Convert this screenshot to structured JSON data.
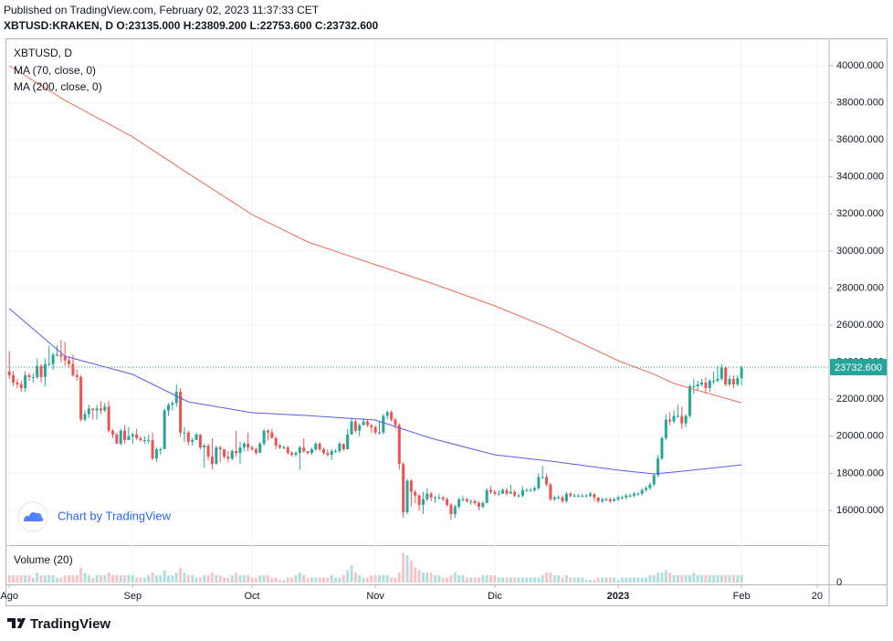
{
  "header": {
    "published": "Published on TradingView.com, February 02, 2023 11:37:33 CET",
    "ohlc_line": "XBTUSD:KRAKEN, D O:23135.000 H:23809.200 L:22753.600 C:23732.600"
  },
  "watermark": "Chart by TradingView",
  "footer_logo": "TradingView",
  "chart_data": {
    "type": "candlestick",
    "symbol": "XBTUSD, D",
    "up_color": "#26a69a",
    "down_color": "#ef5350",
    "open": [
      23500,
      23300,
      22900,
      22800,
      22600,
      23300,
      23200,
      23200,
      23800,
      23200,
      23900,
      23900,
      24400,
      24400,
      24300,
      24100,
      23900,
      23300,
      23200,
      20900,
      21200,
      21500,
      21400,
      21500,
      21400,
      21600,
      20300,
      20100,
      19600,
      20300,
      19800,
      20000,
      20100,
      19900,
      19800,
      19800,
      19800,
      18800,
      19300,
      19300,
      21400,
      21700,
      21800,
      22400,
      20200,
      20200,
      19700,
      19800,
      20100,
      19400,
      19500,
      18900,
      18500,
      19400,
      19300,
      18900,
      18800,
      19200,
      19100,
      19400,
      19600,
      19400,
      19300,
      19100,
      19600,
      20300,
      20200,
      19900,
      19500,
      19400,
      19400,
      19100,
      19000,
      19100,
      19400,
      19200,
      19100,
      19300,
      19600,
      19300,
      19100,
      19000,
      19200,
      19200,
      19600,
      19300,
      20100,
      20800,
      20300,
      20600,
      20800,
      20600,
      20500,
      20200,
      20200,
      21100,
      21300,
      20900,
      20600,
      18500,
      15900,
      17600,
      17000,
      16800,
      16300,
      16600,
      16900,
      16700,
      16700,
      16700,
      16600,
      16300,
      15800,
      16200,
      16600,
      16600,
      16500,
      16500,
      16400,
      16200,
      16400,
      17100,
      17000,
      16900,
      16900,
      17100,
      16900,
      17000,
      16800,
      16800,
      17100,
      17100,
      17100,
      17200,
      17800,
      17800,
      17400,
      16600,
      16700,
      16700,
      16500,
      16900,
      16800,
      16800,
      16800,
      16800,
      16800,
      16900,
      16700,
      16500,
      16600,
      16600,
      16500,
      16600,
      16700,
      16700,
      16800,
      16800,
      16900,
      16900,
      17100,
      17200,
      17400,
      17900,
      18800,
      19900,
      20900,
      20800,
      21100,
      21100,
      20700,
      21100,
      22700,
      22700,
      22800,
      22900,
      22600,
      23000,
      23000,
      23100,
      23700,
      22800,
      23100,
      22800,
      23135
    ],
    "high": [
      24600,
      23500,
      23100,
      23000,
      23500,
      23400,
      23400,
      24200,
      23900,
      24200,
      24900,
      24500,
      24900,
      25200,
      25100,
      24300,
      24400,
      23600,
      23300,
      21400,
      21700,
      21500,
      21700,
      21900,
      21800,
      21900,
      20400,
      20200,
      20400,
      20600,
      20500,
      20200,
      20400,
      20000,
      20000,
      20100,
      20200,
      19400,
      19400,
      21500,
      21800,
      21900,
      22800,
      22600,
      20500,
      20300,
      19900,
      20200,
      20100,
      19600,
      19600,
      19900,
      19500,
      19500,
      19300,
      19200,
      19300,
      20300,
      19700,
      19700,
      20200,
      19500,
      19400,
      19700,
      20400,
      20400,
      20400,
      20000,
      19600,
      19500,
      19500,
      19200,
      19200,
      19500,
      19900,
      19200,
      19400,
      19700,
      19700,
      19400,
      19300,
      19300,
      19300,
      19700,
      19600,
      20400,
      21000,
      20900,
      20700,
      21000,
      20900,
      20700,
      20600,
      20800,
      21200,
      21400,
      21400,
      21000,
      20700,
      18600,
      17700,
      17700,
      17100,
      16900,
      17000,
      17200,
      17000,
      16800,
      16900,
      16800,
      16700,
      16400,
      16300,
      16700,
      16800,
      16700,
      16600,
      16600,
      16500,
      16500,
      17200,
      17300,
      17100,
      17100,
      17200,
      17200,
      17400,
      17100,
      16900,
      17300,
      17200,
      17200,
      17300,
      18000,
      18400,
      18000,
      17500,
      16800,
      16800,
      16800,
      17000,
      17000,
      16900,
      16900,
      16900,
      16900,
      17000,
      16900,
      16700,
      16700,
      16700,
      16700,
      16700,
      16800,
      16800,
      16900,
      16900,
      17000,
      17000,
      17200,
      17300,
      17500,
      18000,
      19000,
      20000,
      21200,
      21300,
      21400,
      21700,
      21600,
      21200,
      22800,
      23100,
      23000,
      23100,
      23200,
      23100,
      23500,
      23800,
      23900,
      23800,
      23300,
      23300,
      23300,
      23809.2
    ],
    "low": [
      23100,
      22700,
      22600,
      22400,
      22400,
      23000,
      22900,
      23100,
      22900,
      22700,
      23800,
      23600,
      24300,
      24000,
      23800,
      23700,
      23200,
      23000,
      20800,
      20800,
      21000,
      20900,
      20900,
      21200,
      21300,
      20200,
      19900,
      19600,
      19500,
      19600,
      19800,
      19600,
      19800,
      19700,
      19600,
      19600,
      18700,
      18600,
      19000,
      19300,
      21100,
      21400,
      21600,
      20000,
      19700,
      19500,
      19500,
      19800,
      19300,
      18300,
      18700,
      18200,
      18500,
      18600,
      18800,
      18600,
      18700,
      18900,
      18500,
      19200,
      19200,
      19200,
      19000,
      19100,
      19500,
      19800,
      19900,
      19300,
      19300,
      19300,
      19000,
      18900,
      18900,
      18200,
      19100,
      19000,
      19000,
      19200,
      19200,
      19000,
      18900,
      18700,
      19100,
      19100,
      19200,
      19300,
      20100,
      20200,
      20000,
      20600,
      20500,
      20200,
      20100,
      20100,
      20100,
      20900,
      20800,
      20400,
      18200,
      15600,
      15800,
      16200,
      16400,
      16000,
      15800,
      16500,
      16500,
      16400,
      16600,
      16500,
      16200,
      15500,
      15600,
      16100,
      16500,
      16400,
      16300,
      16300,
      16000,
      16100,
      16400,
      16900,
      16800,
      16800,
      16900,
      16800,
      16900,
      16700,
      16700,
      16700,
      17000,
      17000,
      17000,
      17100,
      17700,
      17300,
      16500,
      16500,
      16600,
      16400,
      16400,
      16700,
      16700,
      16700,
      16700,
      16700,
      16700,
      16500,
      16400,
      16400,
      16500,
      16400,
      16500,
      16500,
      16600,
      16600,
      16700,
      16700,
      16800,
      16800,
      17000,
      17100,
      17300,
      17800,
      18700,
      19800,
      20600,
      20700,
      21000,
      20400,
      20500,
      21000,
      22300,
      22500,
      22700,
      22300,
      22400,
      22800,
      22900,
      23000,
      22700,
      22700,
      22600,
      22700,
      22753.6
    ],
    "close": [
      23300,
      22900,
      22800,
      22600,
      23300,
      23200,
      23200,
      23800,
      23200,
      23900,
      23900,
      24400,
      24400,
      24300,
      24100,
      23900,
      23300,
      23200,
      20900,
      21200,
      21500,
      21400,
      21500,
      21400,
      21600,
      20300,
      20100,
      19600,
      20300,
      19800,
      20000,
      20100,
      19900,
      19800,
      19800,
      19800,
      18800,
      19300,
      19300,
      21400,
      21700,
      21800,
      22400,
      20200,
      20200,
      19700,
      19800,
      20100,
      19400,
      19500,
      18900,
      18500,
      19400,
      19300,
      18900,
      18800,
      19200,
      19100,
      19400,
      19600,
      19400,
      19300,
      19100,
      19600,
      20300,
      20200,
      19900,
      19500,
      19400,
      19400,
      19100,
      19000,
      19100,
      19400,
      19200,
      19100,
      19300,
      19600,
      19300,
      19100,
      19000,
      19200,
      19200,
      19600,
      19300,
      20100,
      20800,
      20300,
      20600,
      20800,
      20600,
      20500,
      20200,
      20200,
      21100,
      21300,
      20900,
      20600,
      18500,
      15900,
      17600,
      17000,
      16800,
      16300,
      16600,
      16900,
      16700,
      16700,
      16700,
      16600,
      16300,
      15800,
      16200,
      16600,
      16600,
      16500,
      16500,
      16400,
      16200,
      16400,
      17100,
      17000,
      16900,
      16900,
      17100,
      16900,
      17000,
      16800,
      16800,
      17100,
      17100,
      17100,
      17200,
      17800,
      17800,
      17400,
      16600,
      16700,
      16700,
      16500,
      16900,
      16800,
      16800,
      16800,
      16800,
      16800,
      16900,
      16700,
      16500,
      16600,
      16600,
      16500,
      16600,
      16700,
      16700,
      16800,
      16800,
      16900,
      16900,
      17100,
      17200,
      17400,
      17900,
      18800,
      19900,
      20900,
      20800,
      21100,
      21100,
      20700,
      21100,
      22700,
      22700,
      22800,
      22900,
      22600,
      23000,
      23000,
      23100,
      23700,
      22800,
      23100,
      22800,
      23135,
      23732.6
    ],
    "last_price_label": "23732.600",
    "ylim": [
      14126,
      41380
    ],
    "yticks": [
      {
        "value": 16000,
        "label": "16000.000"
      },
      {
        "value": 18000,
        "label": "18000.000"
      },
      {
        "value": 20000,
        "label": "20000.000"
      },
      {
        "value": 22000,
        "label": "22000.000"
      },
      {
        "value": 24000,
        "label": "24000.000"
      },
      {
        "value": 26000,
        "label": "26000.000"
      },
      {
        "value": 28000,
        "label": "28000.000"
      },
      {
        "value": 30000,
        "label": "30000.000"
      },
      {
        "value": 32000,
        "label": "32000.000"
      },
      {
        "value": 34000,
        "label": "34000.000"
      },
      {
        "value": 36000,
        "label": "36000.000"
      },
      {
        "value": 38000,
        "label": "38000.000"
      },
      {
        "value": 40000,
        "label": "40000.000"
      }
    ],
    "xlim": [
      -0.5,
      206
    ],
    "xticks": [
      {
        "value": 0,
        "label": "Ago"
      },
      {
        "value": 31,
        "label": "Sep"
      },
      {
        "value": 61,
        "label": "Oct"
      },
      {
        "value": 92,
        "label": "Nov"
      },
      {
        "value": 122,
        "label": "Dic"
      },
      {
        "value": 153,
        "label": "2023"
      },
      {
        "value": 184,
        "label": "Feb"
      },
      {
        "value": 203,
        "label": "20"
      }
    ],
    "grid": true,
    "moving_averages": [
      {
        "name": "MA (70, close, 0)",
        "color": "#5c5ce6",
        "x": [
          0,
          14,
          31,
          45,
          61,
          75,
          92,
          106,
          122,
          136,
          153,
          162,
          167,
          184
        ],
        "values": [
          26890,
          24330,
          23340,
          21860,
          21270,
          21120,
          20880,
          19890,
          19000,
          18660,
          18170,
          17970,
          18070,
          18460
        ]
      },
      {
        "name": "MA (200, close, 0)",
        "color": "#ef6c5a",
        "x": [
          0,
          14,
          31,
          45,
          61,
          75,
          92,
          106,
          122,
          136,
          153,
          162,
          167,
          184
        ],
        "values": [
          40000,
          38130,
          36160,
          34180,
          31970,
          30490,
          29260,
          28270,
          27040,
          25810,
          24080,
          23350,
          22850,
          21810
        ]
      }
    ],
    "volume": {
      "name": "Volume (20)",
      "ylim": [
        0,
        14
      ],
      "yticks": [
        0
      ],
      "up_color": "#b2dfdb",
      "down_color": "#f7c5c9",
      "values": [
        3,
        3,
        3,
        3,
        3,
        3,
        2,
        4,
        3,
        3,
        3,
        3,
        2,
        2,
        3,
        3,
        3,
        3,
        6,
        4,
        3,
        2,
        3,
        3,
        3,
        4,
        3,
        3,
        3,
        3,
        3,
        3,
        2,
        2,
        2,
        3,
        4,
        3,
        3,
        5,
        3,
        3,
        4,
        6,
        4,
        3,
        3,
        2,
        2,
        3,
        3,
        4,
        3,
        3,
        2,
        2,
        3,
        4,
        3,
        3,
        3,
        2,
        2,
        3,
        3,
        3,
        2,
        2,
        1,
        1,
        2,
        2,
        3,
        4,
        3,
        2,
        2,
        2,
        2,
        2,
        2,
        3,
        2,
        2,
        3,
        5,
        7,
        4,
        3,
        2,
        2,
        3,
        3,
        3,
        3,
        3,
        2,
        2,
        4,
        12,
        11,
        9,
        6,
        5,
        4,
        4,
        4,
        3,
        3,
        2,
        2,
        3,
        4,
        3,
        3,
        2,
        2,
        2,
        2,
        3,
        3,
        3,
        3,
        2,
        2,
        2,
        2,
        2,
        2,
        2,
        2,
        2,
        2,
        2,
        3,
        4,
        4,
        3,
        3,
        2,
        3,
        2,
        2,
        2,
        2,
        1,
        1,
        1,
        2,
        2,
        2,
        2,
        2,
        1,
        2,
        2,
        2,
        2,
        2,
        2,
        2,
        3,
        3,
        4,
        4,
        5,
        4,
        3,
        3,
        3,
        3,
        3,
        4,
        3,
        3,
        3,
        3,
        3,
        3,
        3,
        3,
        3,
        3,
        3,
        3
      ]
    }
  }
}
